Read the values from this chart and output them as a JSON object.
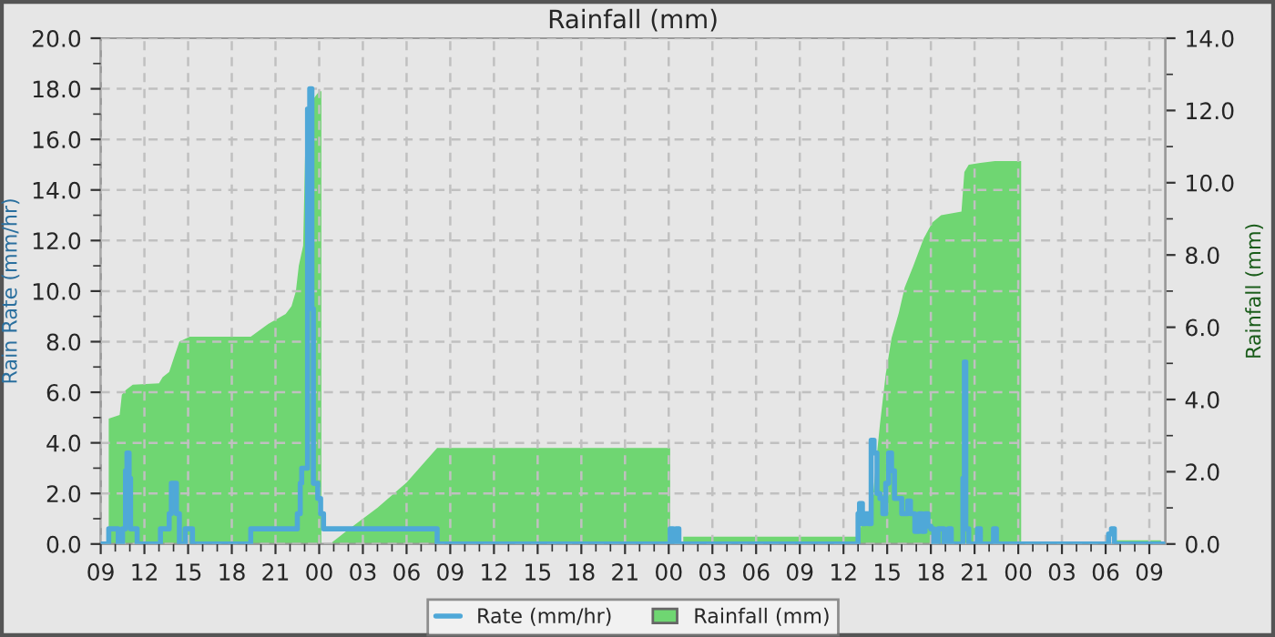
{
  "chart_data": {
    "type": "area",
    "title": "Rainfall (mm)",
    "ylabel": "Rain Rate (mm/hr)",
    "y2label": "Rainfall (mm)",
    "legend": "bottom",
    "grid": true,
    "xlim": [
      9,
      82.1
    ],
    "xticks": [
      {
        "value": 9,
        "label": "09"
      },
      {
        "value": 10,
        "label": null
      },
      {
        "value": 11,
        "label": null
      },
      {
        "value": 12,
        "label": "12"
      },
      {
        "value": 13,
        "label": null
      },
      {
        "value": 14,
        "label": null
      },
      {
        "value": 15,
        "label": "15"
      },
      {
        "value": 16,
        "label": null
      },
      {
        "value": 17,
        "label": null
      },
      {
        "value": 18,
        "label": "18"
      },
      {
        "value": 19,
        "label": null
      },
      {
        "value": 20,
        "label": null
      },
      {
        "value": 21,
        "label": "21"
      },
      {
        "value": 22,
        "label": null
      },
      {
        "value": 23,
        "label": null
      },
      {
        "value": 24,
        "label": "00"
      },
      {
        "value": 25,
        "label": null
      },
      {
        "value": 26,
        "label": null
      },
      {
        "value": 27,
        "label": "03"
      },
      {
        "value": 28,
        "label": null
      },
      {
        "value": 29,
        "label": null
      },
      {
        "value": 30,
        "label": "06"
      },
      {
        "value": 31,
        "label": null
      },
      {
        "value": 32,
        "label": null
      },
      {
        "value": 33,
        "label": "09"
      },
      {
        "value": 34,
        "label": null
      },
      {
        "value": 35,
        "label": null
      },
      {
        "value": 36,
        "label": "12"
      },
      {
        "value": 37,
        "label": null
      },
      {
        "value": 38,
        "label": null
      },
      {
        "value": 39,
        "label": "15"
      },
      {
        "value": 40,
        "label": null
      },
      {
        "value": 41,
        "label": null
      },
      {
        "value": 42,
        "label": "18"
      },
      {
        "value": 43,
        "label": null
      },
      {
        "value": 44,
        "label": null
      },
      {
        "value": 45,
        "label": "21"
      },
      {
        "value": 46,
        "label": null
      },
      {
        "value": 47,
        "label": null
      },
      {
        "value": 48,
        "label": "00"
      },
      {
        "value": 49,
        "label": null
      },
      {
        "value": 50,
        "label": null
      },
      {
        "value": 51,
        "label": "03"
      },
      {
        "value": 52,
        "label": null
      },
      {
        "value": 53,
        "label": null
      },
      {
        "value": 54,
        "label": "06"
      },
      {
        "value": 55,
        "label": null
      },
      {
        "value": 56,
        "label": null
      },
      {
        "value": 57,
        "label": "09"
      },
      {
        "value": 58,
        "label": null
      },
      {
        "value": 59,
        "label": null
      },
      {
        "value": 60,
        "label": "12"
      },
      {
        "value": 61,
        "label": null
      },
      {
        "value": 62,
        "label": null
      },
      {
        "value": 63,
        "label": "15"
      },
      {
        "value": 64,
        "label": null
      },
      {
        "value": 65,
        "label": null
      },
      {
        "value": 66,
        "label": "18"
      },
      {
        "value": 67,
        "label": null
      },
      {
        "value": 68,
        "label": null
      },
      {
        "value": 69,
        "label": "21"
      },
      {
        "value": 70,
        "label": null
      },
      {
        "value": 71,
        "label": null
      },
      {
        "value": 72,
        "label": "00"
      },
      {
        "value": 73,
        "label": null
      },
      {
        "value": 74,
        "label": null
      },
      {
        "value": 75,
        "label": "03"
      },
      {
        "value": 76,
        "label": null
      },
      {
        "value": 77,
        "label": null
      },
      {
        "value": 78,
        "label": "06"
      },
      {
        "value": 79,
        "label": null
      },
      {
        "value": 80,
        "label": null
      },
      {
        "value": 81,
        "label": "09"
      }
    ],
    "ylim": [
      0,
      20
    ],
    "yticks": [
      {
        "value": 0,
        "label": "0.0"
      },
      {
        "value": 1,
        "label": null
      },
      {
        "value": 2,
        "label": "2.0"
      },
      {
        "value": 3,
        "label": null
      },
      {
        "value": 4,
        "label": "4.0"
      },
      {
        "value": 5,
        "label": null
      },
      {
        "value": 6,
        "label": "6.0"
      },
      {
        "value": 7,
        "label": null
      },
      {
        "value": 8,
        "label": "8.0"
      },
      {
        "value": 9,
        "label": null
      },
      {
        "value": 10,
        "label": "10.0"
      },
      {
        "value": 11,
        "label": null
      },
      {
        "value": 12,
        "label": "12.0"
      },
      {
        "value": 13,
        "label": null
      },
      {
        "value": 14,
        "label": "14.0"
      },
      {
        "value": 15,
        "label": null
      },
      {
        "value": 16,
        "label": "16.0"
      },
      {
        "value": 17,
        "label": null
      },
      {
        "value": 18,
        "label": "18.0"
      },
      {
        "value": 19,
        "label": null
      },
      {
        "value": 20,
        "label": "20.0"
      }
    ],
    "y2lim": [
      0,
      14
    ],
    "y2ticks": [
      {
        "value": 0,
        "label": "0.0"
      },
      {
        "value": 1,
        "label": null
      },
      {
        "value": 2,
        "label": "2.0"
      },
      {
        "value": 3,
        "label": null
      },
      {
        "value": 4,
        "label": "4.0"
      },
      {
        "value": 5,
        "label": null
      },
      {
        "value": 6,
        "label": "6.0"
      },
      {
        "value": 7,
        "label": null
      },
      {
        "value": 8,
        "label": "8.0"
      },
      {
        "value": 9,
        "label": null
      },
      {
        "value": 10,
        "label": "10.0"
      },
      {
        "value": 11,
        "label": null
      },
      {
        "value": 12,
        "label": "12.0"
      },
      {
        "value": 13,
        "label": null
      },
      {
        "value": 14,
        "label": "14.0"
      }
    ],
    "series": [
      {
        "name": "Rainfall (mm)",
        "axis": "y2",
        "color": "#6fd672",
        "x": [
          9.55,
          10.3,
          10.45,
          10.75,
          11.2,
          13.0,
          13.25,
          13.7,
          14.1,
          14.4,
          15.1,
          19.3,
          20.5,
          21.7,
          22.1,
          22.4,
          22.6,
          22.9,
          23.1,
          23.6,
          24.0,
          24.15,
          24.2,
          24.9,
          26,
          28,
          30,
          32.1,
          48.1,
          48.2,
          49,
          61.1,
          61.3,
          61.9,
          62.3,
          62.5,
          62.9,
          63.3,
          63.8,
          64.2,
          64.8,
          65.5,
          66.1,
          66.7,
          68.1,
          68.3,
          68.6,
          69.4,
          70.4,
          72.2,
          72.3,
          78.6,
          81.8
        ],
        "values": [
          3.47,
          3.57,
          4.13,
          4.27,
          4.41,
          4.45,
          4.62,
          4.76,
          5.25,
          5.6,
          5.74,
          5.74,
          6.09,
          6.37,
          6.58,
          7.0,
          7.7,
          8.26,
          12.04,
          12.32,
          12.53,
          12.53,
          null,
          0.05,
          0.4,
          1.0,
          1.7,
          2.66,
          2.66,
          null,
          0.2,
          0.2,
          0.8,
          0.8,
          2.5,
          3.3,
          4.7,
          5.7,
          6.4,
          7.1,
          7.7,
          8.45,
          8.9,
          9.1,
          9.2,
          10.3,
          10.5,
          10.55,
          10.6,
          10.6,
          null,
          0.1,
          0.1
        ]
      },
      {
        "name": "Rate (mm/hr)",
        "type": "step",
        "color": "#4fa8d8",
        "x": [
          9,
          9.55,
          10.2,
          10.5,
          10.7,
          10.8,
          10.95,
          11.05,
          11.5,
          13.1,
          13.7,
          13.85,
          14.2,
          14.4,
          14.8,
          15.3,
          19.3,
          22.5,
          22.7,
          22.8,
          23.2,
          23.35,
          23.5,
          23.6,
          23.9,
          24.1,
          24.3,
          32.1,
          48.1,
          48.3,
          48.5,
          48.7,
          61.0,
          61.1,
          61.3,
          61.5,
          61.7,
          61.9,
          62.1,
          62.3,
          62.5,
          62.7,
          62.9,
          63.1,
          63.3,
          63.5,
          64.0,
          64.4,
          64.6,
          64.9,
          65.2,
          65.4,
          65.6,
          65.8,
          66.0,
          66.2,
          66.5,
          66.9,
          67.2,
          67.4,
          68.2,
          68.3,
          68.4,
          68.6,
          69.2,
          69.4,
          70.3,
          70.5,
          78.2,
          78.4,
          78.6,
          82.0
        ],
        "values": [
          0,
          0.6,
          0,
          0.6,
          2.9,
          3.6,
          2.6,
          0.6,
          0,
          0.6,
          1.2,
          2.4,
          1.2,
          0,
          0.6,
          0,
          0.6,
          1.2,
          2.4,
          3.0,
          17.2,
          18.0,
          9.3,
          2.4,
          1.8,
          1.2,
          0.6,
          0,
          0.6,
          0,
          0.6,
          0,
          1.2,
          1.6,
          0.8,
          1.2,
          0.8,
          4.1,
          3.6,
          2.0,
          1.8,
          1.2,
          2.4,
          3.6,
          2.9,
          1.8,
          1.2,
          1.7,
          1.2,
          0.5,
          1.2,
          0.5,
          1.2,
          0.7,
          0.6,
          0,
          0.6,
          0,
          0.6,
          0,
          2.6,
          7.2,
          0.6,
          0,
          0.6,
          0,
          0.6,
          0,
          0.4,
          0.6,
          0,
          0
        ]
      }
    ]
  }
}
